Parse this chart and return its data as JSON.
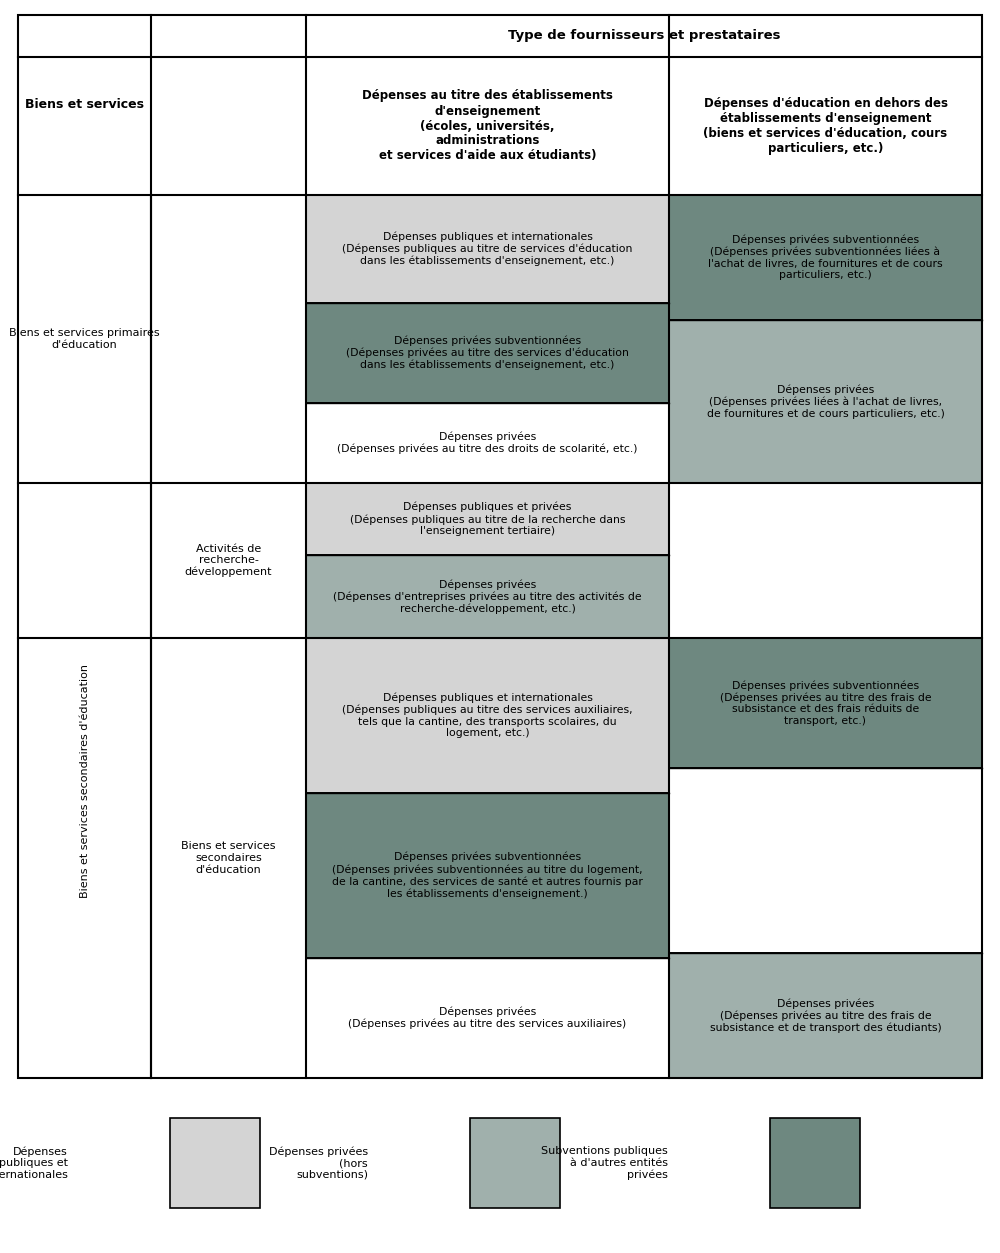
{
  "colors": {
    "light_gray": "#d4d4d4",
    "medium_gray": "#a0b0ac",
    "dark_gray": "#6e8880",
    "white": "#ffffff",
    "black": "#000000"
  },
  "legend": [
    {
      "label": "Dépenses\npubliques et\ninternationales",
      "color": "#d4d4d4"
    },
    {
      "label": "Dépenses privées\n(hors\nsubventions)",
      "color": "#a0b0ac"
    },
    {
      "label": "Subventions publiques\nà d'autres entités\nprivées",
      "color": "#6e8880"
    }
  ]
}
